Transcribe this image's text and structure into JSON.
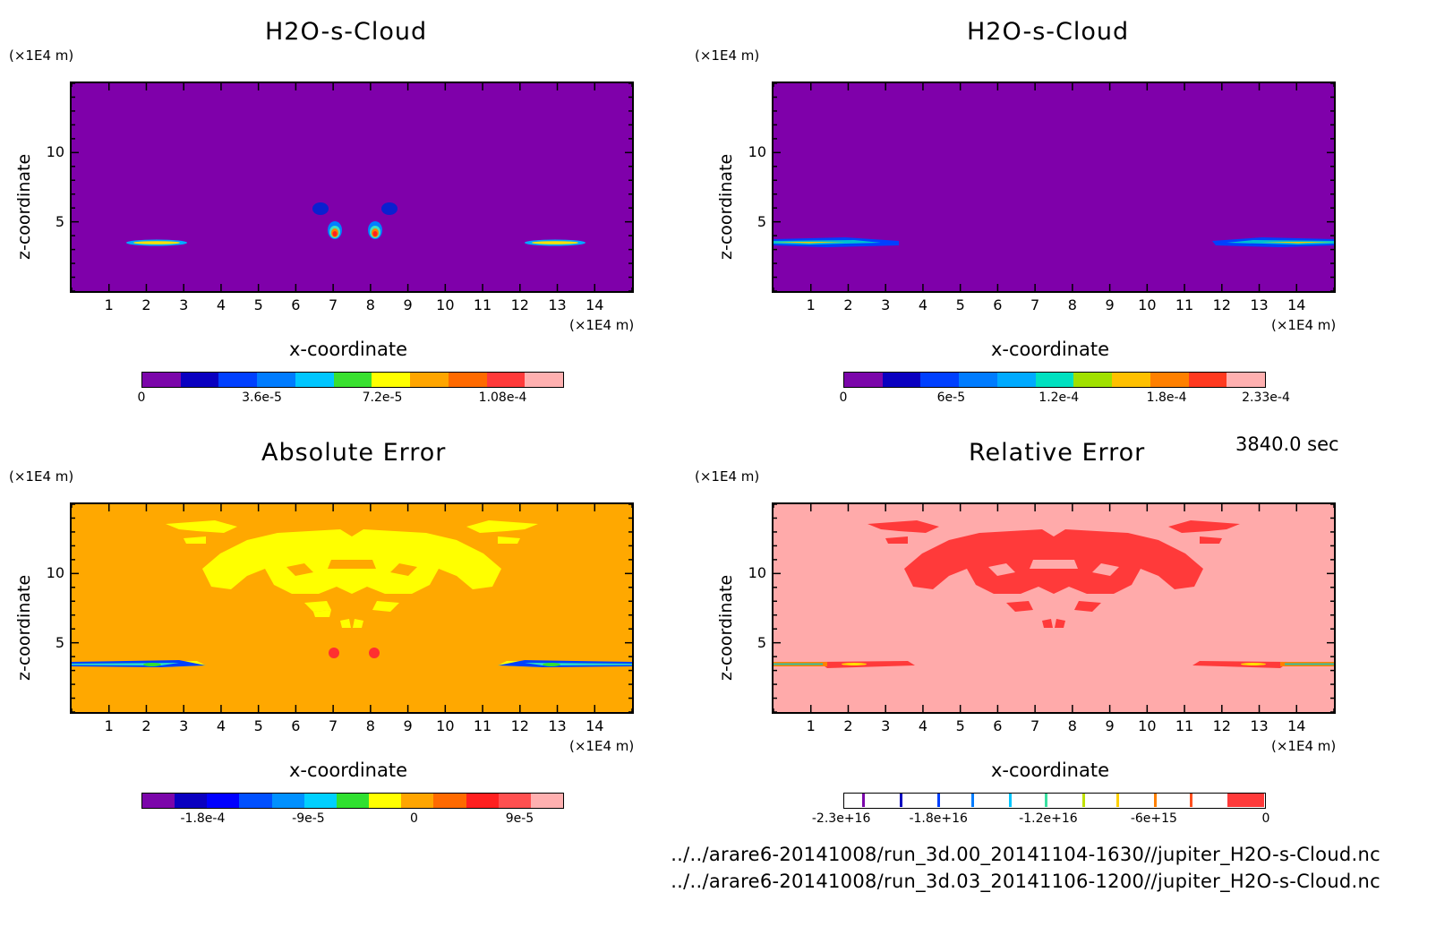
{
  "panels": [
    {
      "title": "H2O-s-Cloud",
      "yunit": "(×1E4 m)",
      "xunit": "(×1E4 m)",
      "xlabel": "x-coordinate",
      "ylabel": "z-coordinate",
      "background": "#7f00aa",
      "colorbar": {
        "colors": [
          "#7b06aa",
          "#0a00c0",
          "#0040ff",
          "#007cff",
          "#00c6ff",
          "#39e030",
          "#ffff00",
          "#ffa500",
          "#ff6a00",
          "#ff3a3a",
          "#ffb0b0"
        ],
        "ticks": [
          "0",
          "3.6e-5",
          "7.2e-5",
          "1.08e-4"
        ]
      }
    },
    {
      "title": "H2O-s-Cloud",
      "yunit": "(×1E4 m)",
      "xunit": "(×1E4 m)",
      "xlabel": "x-coordinate",
      "ylabel": "z-coordinate",
      "background": "#7f00aa",
      "colorbar": {
        "colors": [
          "#7b06aa",
          "#0a00c0",
          "#0040ff",
          "#007cff",
          "#00aaff",
          "#00e0c0",
          "#a0e000",
          "#ffc000",
          "#ff8000",
          "#ff3a20",
          "#ffb0b0"
        ],
        "ticks": [
          "0",
          "6e-5",
          "1.2e-4",
          "1.8e-4",
          "2.33e-4"
        ]
      }
    },
    {
      "title": "Absolute Error",
      "yunit": "(×1E4 m)",
      "xunit": "(×1E4 m)",
      "xlabel": "x-coordinate",
      "ylabel": "z-coordinate",
      "background": "#ffa500",
      "colorbar": {
        "colors": [
          "#7b06aa",
          "#0a00c0",
          "#0000ff",
          "#0050ff",
          "#0090ff",
          "#00d0ff",
          "#30e030",
          "#ffff00",
          "#ffa500",
          "#ff6a00",
          "#ff2020",
          "#ff5050",
          "#ffb0b0"
        ],
        "ticks": [
          "-1.8e-4",
          "-9e-5",
          "0",
          "9e-5"
        ]
      }
    },
    {
      "title": "Relative Error",
      "yunit": "(×1E4 m)",
      "xunit": "(×1E4 m)",
      "xlabel": "x-coordinate",
      "ylabel": "z-coordinate",
      "background": "#ffaaaa",
      "colorbar": {
        "ticks": [
          "-2.3e+16",
          "-1.8e+16",
          "-1.2e+16",
          "-6e+15",
          "0"
        ]
      }
    }
  ],
  "time_label": "3840.0 sec",
  "footer": [
    "../../arare6-20141008/run_3d.00_20141104-1630//jupiter_H2O-s-Cloud.nc",
    "../../arare6-20141008/run_3d.03_20141106-1200//jupiter_H2O-s-Cloud.nc"
  ],
  "chart_data": [
    {
      "type": "heatmap",
      "title": "H2O-s-Cloud",
      "xlabel": "x-coordinate",
      "ylabel": "z-coordinate",
      "x_unit": "(×1E4 m)",
      "z_unit": "(×1E4 m)",
      "x_ticks": [
        1,
        2,
        3,
        4,
        5,
        6,
        7,
        8,
        9,
        10,
        11,
        12,
        13,
        14
      ],
      "z_ticks": [
        5,
        10
      ],
      "xlim": [
        0,
        15
      ],
      "zlim": [
        0,
        15
      ],
      "colorbar_ticks": [
        "0",
        "3.6e-5",
        "7.2e-5",
        "1.08e-4"
      ]
    },
    {
      "type": "heatmap",
      "title": "H2O-s-Cloud",
      "xlabel": "x-coordinate",
      "ylabel": "z-coordinate",
      "x_unit": "(×1E4 m)",
      "z_unit": "(×1E4 m)",
      "x_ticks": [
        1,
        2,
        3,
        4,
        5,
        6,
        7,
        8,
        9,
        10,
        11,
        12,
        13,
        14
      ],
      "z_ticks": [
        5,
        10
      ],
      "xlim": [
        0,
        15
      ],
      "zlim": [
        0,
        15
      ],
      "colorbar_ticks": [
        "0",
        "6e-5",
        "1.2e-4",
        "1.8e-4",
        "2.33e-4"
      ]
    },
    {
      "type": "heatmap",
      "title": "Absolute Error",
      "xlabel": "x-coordinate",
      "ylabel": "z-coordinate",
      "x_unit": "(×1E4 m)",
      "z_unit": "(×1E4 m)",
      "x_ticks": [
        1,
        2,
        3,
        4,
        5,
        6,
        7,
        8,
        9,
        10,
        11,
        12,
        13,
        14
      ],
      "z_ticks": [
        5,
        10
      ],
      "xlim": [
        0,
        15
      ],
      "zlim": [
        0,
        15
      ],
      "colorbar_ticks": [
        "-1.8e-4",
        "-9e-5",
        "0",
        "9e-5"
      ]
    },
    {
      "type": "heatmap",
      "title": "Relative Error",
      "xlabel": "x-coordinate",
      "ylabel": "z-coordinate",
      "x_unit": "(×1E4 m)",
      "z_unit": "(×1E4 m)",
      "x_ticks": [
        1,
        2,
        3,
        4,
        5,
        6,
        7,
        8,
        9,
        10,
        11,
        12,
        13,
        14
      ],
      "z_ticks": [
        5,
        10
      ],
      "xlim": [
        0,
        15
      ],
      "zlim": [
        0,
        15
      ],
      "colorbar_ticks": [
        "-2.3e+16",
        "-1.8e+16",
        "-1.2e+16",
        "-6e+15",
        "0"
      ]
    }
  ]
}
